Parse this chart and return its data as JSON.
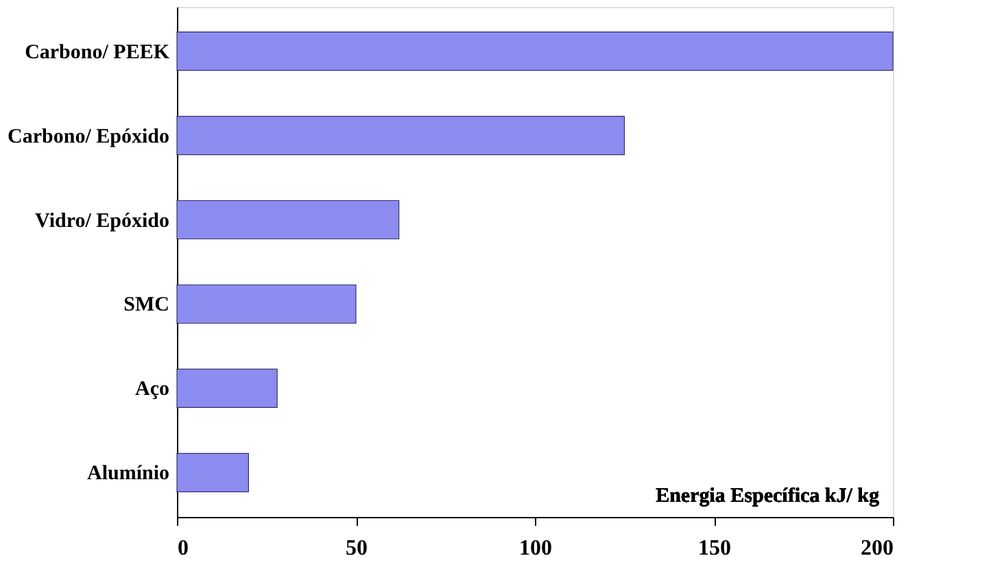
{
  "chart_data": {
    "type": "bar",
    "orientation": "horizontal",
    "xlabel": "Energia Específica kJ/ kg",
    "categories": [
      "Carbono/ PEEK",
      "Carbono/ Epóxido",
      "Vidro/ Epóxido",
      "SMC",
      "Aço",
      "Alumínio"
    ],
    "values": [
      200,
      125,
      62,
      50,
      28,
      20
    ],
    "color": "#8c8cf0",
    "xlim": [
      0,
      200
    ],
    "xticks": [
      0,
      50,
      100,
      150,
      200
    ],
    "grid": false
  }
}
